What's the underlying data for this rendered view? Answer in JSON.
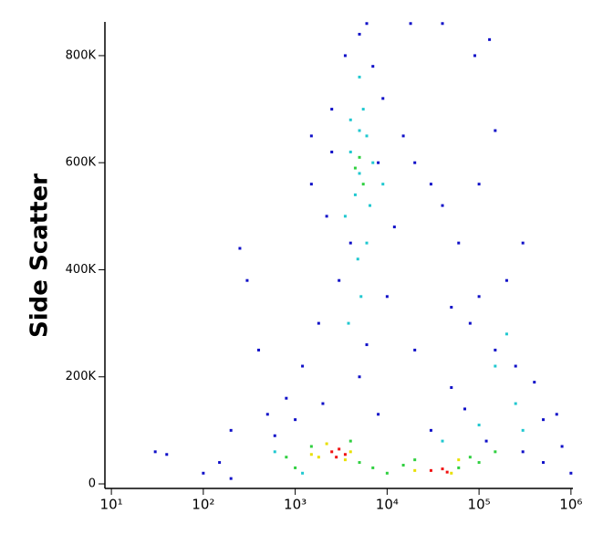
{
  "chart_data": {
    "type": "scatter",
    "y_label": "Side Scatter",
    "x_scale": "log",
    "xlim": [
      8.5,
      1050000
    ],
    "xticks": [
      {
        "value": 10,
        "label": "10¹"
      },
      {
        "value": 100,
        "label": "10²"
      },
      {
        "value": 1000,
        "label": "10³"
      },
      {
        "value": 10000,
        "label": "10⁴"
      },
      {
        "value": 100000,
        "label": "10⁵"
      },
      {
        "value": 1000000,
        "label": "10⁶"
      }
    ],
    "ylim": [
      -8500,
      863000
    ],
    "yticks": [
      0,
      {
        "value": 200000,
        "label": "200K"
      },
      {
        "value": 400000,
        "label": "400K"
      },
      {
        "value": 600000,
        "label": "600K"
      },
      {
        "value": 800000,
        "label": "800K"
      }
    ],
    "series": [
      {
        "color": "#1010c8",
        "x": [
          5000,
          3500,
          7000,
          2500,
          9000,
          15000,
          20000,
          30000,
          1500,
          2200,
          12000,
          40000,
          60000,
          100000,
          150000,
          300000,
          200000,
          80000,
          150000,
          250000,
          400000,
          500000,
          50000,
          20000,
          10000,
          3000,
          1800,
          1200,
          800,
          500,
          300,
          250,
          400,
          200,
          150,
          30,
          40,
          100,
          200,
          600,
          1000,
          2000,
          5000,
          8000,
          30000,
          70000,
          120000,
          300000,
          500000,
          800000,
          1000000,
          700000,
          100000,
          50000,
          6000,
          4000,
          2500,
          1500,
          8000,
          6000,
          18000,
          40000,
          90000,
          130000
        ],
        "values": [
          840000,
          800000,
          780000,
          700000,
          720000,
          650000,
          600000,
          560000,
          560000,
          500000,
          480000,
          520000,
          450000,
          560000,
          660000,
          450000,
          380000,
          300000,
          250000,
          220000,
          190000,
          120000,
          180000,
          250000,
          350000,
          380000,
          300000,
          220000,
          160000,
          130000,
          380000,
          440000,
          250000,
          100000,
          40000,
          60000,
          55000,
          20000,
          10000,
          90000,
          120000,
          150000,
          200000,
          130000,
          100000,
          140000,
          80000,
          60000,
          40000,
          70000,
          20000,
          130000,
          350000,
          330000,
          260000,
          450000,
          620000,
          650000,
          600000,
          860000,
          860000,
          860000,
          800000,
          830000
        ]
      },
      {
        "color": "#20c8d0",
        "x": [
          4000,
          5000,
          6000,
          5500,
          4500,
          3500,
          6500,
          7000,
          5000,
          4000,
          6000,
          4800,
          5200,
          3800,
          200000,
          150000,
          250000,
          600,
          1200,
          40000,
          100000,
          300000,
          9000,
          5000
        ],
        "values": [
          620000,
          580000,
          650000,
          700000,
          540000,
          500000,
          520000,
          600000,
          760000,
          680000,
          450000,
          420000,
          350000,
          300000,
          280000,
          220000,
          150000,
          60000,
          20000,
          80000,
          110000,
          100000,
          560000,
          660000
        ]
      },
      {
        "color": "#30d040",
        "x": [
          800,
          1000,
          1500,
          4000,
          5000,
          7000,
          10000,
          15000,
          20000,
          60000,
          80000,
          100000,
          150000,
          5500,
          5000,
          4500
        ],
        "values": [
          50000,
          30000,
          70000,
          80000,
          40000,
          30000,
          20000,
          35000,
          45000,
          30000,
          50000,
          40000,
          60000,
          560000,
          610000,
          590000
        ]
      },
      {
        "color": "#e8e000",
        "x": [
          1800,
          2200,
          3500,
          4000,
          20000,
          50000,
          60000,
          1500
        ],
        "values": [
          50000,
          75000,
          45000,
          60000,
          25000,
          20000,
          45000,
          55000
        ]
      },
      {
        "color": "#f01010",
        "x": [
          2500,
          3000,
          3500,
          2800,
          30000,
          40000,
          45000
        ],
        "values": [
          60000,
          65000,
          55000,
          50000,
          25000,
          28000,
          22000
        ]
      }
    ]
  }
}
